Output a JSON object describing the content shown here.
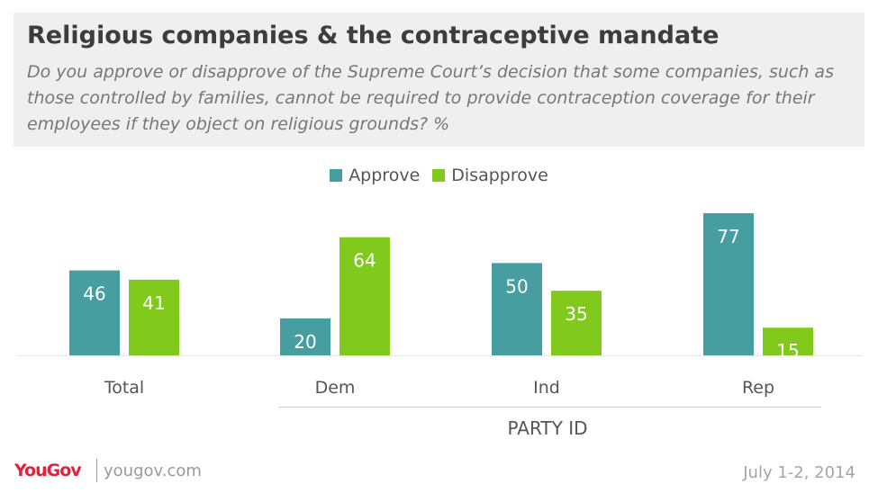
{
  "header": {
    "title": "Religious companies & the contraceptive mandate",
    "subtitle": "Do you approve or disapprove of the Supreme Court’s decision that some companies, such as those controlled by families, cannot be required to provide contraception coverage for their employees if they object on religious grounds? %"
  },
  "legend": {
    "approve_label": "Approve",
    "disapprove_label": "Disapprove"
  },
  "chart_data": {
    "type": "bar",
    "categories": [
      "Total",
      "Dem",
      "Ind",
      "Rep"
    ],
    "series": [
      {
        "name": "Approve",
        "color": "#469ea1",
        "values": [
          46,
          20,
          50,
          77
        ]
      },
      {
        "name": "Disapprove",
        "color": "#82c91e",
        "values": [
          41,
          64,
          35,
          15
        ]
      }
    ],
    "group_label": "PARTY ID",
    "group_categories": [
      "Dem",
      "Ind",
      "Rep"
    ],
    "ylim": [
      0,
      77
    ],
    "grid": false,
    "legend_position": "top-center"
  },
  "footer": {
    "logo": "YouGov",
    "url": "yougov.com",
    "date": "July 1-2, 2014"
  }
}
